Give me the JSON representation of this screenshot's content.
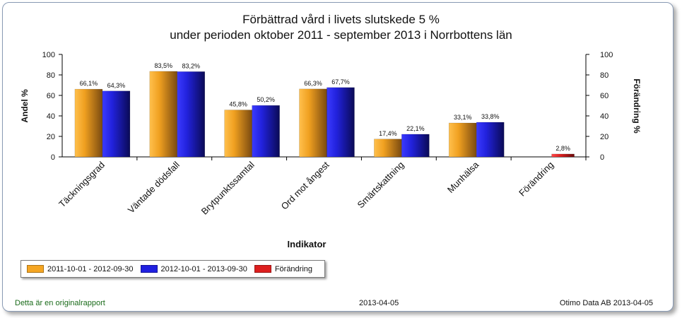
{
  "header": {
    "title_line1": "Förbättrad vård i livets slutskede 5 %",
    "title_line2": "under perioden oktober 2011 - september 2013 i Norrbottens län"
  },
  "chart_data": {
    "type": "bar",
    "title": "Förbättrad vård i livets slutskede 5 % under perioden oktober 2011 - september 2013 i Norrbottens län",
    "xlabel": "Indikator",
    "ylabel": "Andel %",
    "y2label": "Förändring %",
    "ylim": [
      0,
      100
    ],
    "y2lim": [
      0,
      100
    ],
    "yticks": [
      0,
      20,
      40,
      60,
      80,
      100
    ],
    "categories": [
      "Täckningsgrad",
      "Väntade dödsfall",
      "Brytpunktssamtal",
      "Ord mot ångest",
      "Smärtskattning",
      "Munhälsa",
      "Förändring"
    ],
    "series": [
      {
        "name": "2011-10-01 - 2012-09-30",
        "color": "#f5a623",
        "values": [
          66.1,
          83.5,
          45.8,
          66.3,
          17.4,
          33.1,
          null
        ],
        "labels": [
          "66,1%",
          "83,5%",
          "45,8%",
          "66,3%",
          "17,4%",
          "33,1%",
          null
        ]
      },
      {
        "name": "2012-10-01 - 2013-09-30",
        "color": "#2020e0",
        "values": [
          64.3,
          83.2,
          50.2,
          67.7,
          22.1,
          33.8,
          null
        ],
        "labels": [
          "64,3%",
          "83,2%",
          "50,2%",
          "67,7%",
          "22,1%",
          "33,8%",
          null
        ]
      },
      {
        "name": "Förändring",
        "color": "#dd1f1f",
        "values": [
          null,
          null,
          null,
          null,
          null,
          null,
          2.8
        ],
        "labels": [
          null,
          null,
          null,
          null,
          null,
          null,
          "2,8%"
        ]
      }
    ],
    "grid": false,
    "legend_position": "bottom-left"
  },
  "footer": {
    "left": "Detta är en originalrapport",
    "middle": "2013-04-05",
    "right": "Otimo Data AB 2013-04-05"
  }
}
